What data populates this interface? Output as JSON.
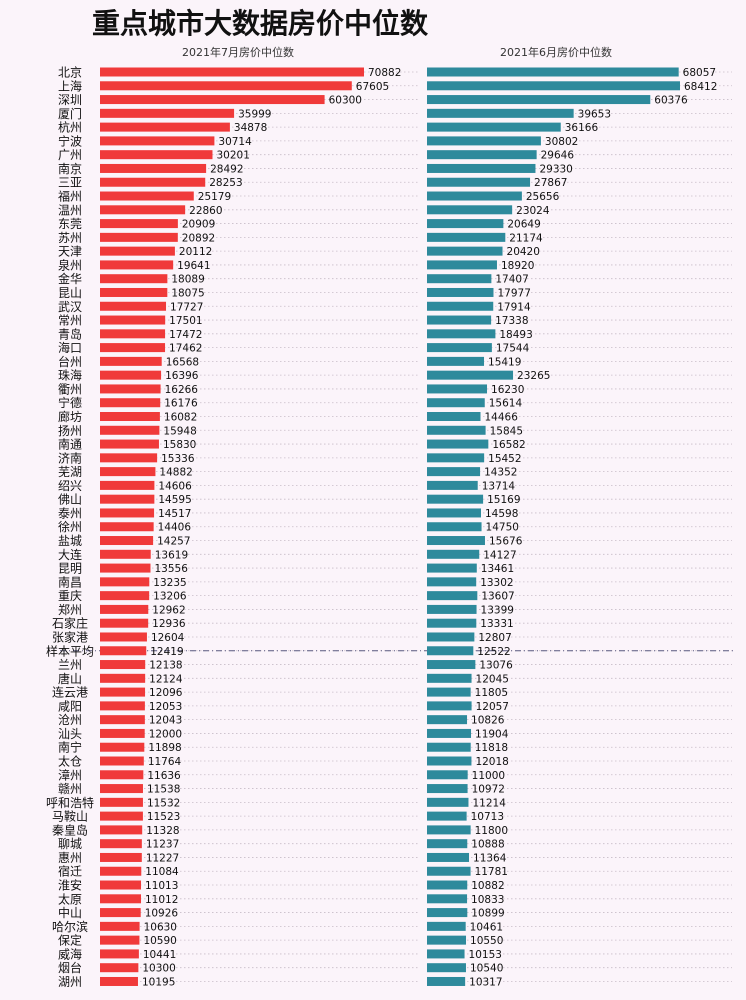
{
  "chart_data": {
    "type": "bar",
    "title": "重点城市大数据房价中位数",
    "series": [
      {
        "name": "2021年7月房价中位数",
        "color": "#f03a3a",
        "values": [
          70882,
          67605,
          60300,
          35999,
          34878,
          30714,
          30201,
          28492,
          28253,
          25179,
          22860,
          20909,
          20892,
          20112,
          19641,
          18089,
          18075,
          17727,
          17501,
          17472,
          17462,
          16568,
          16396,
          16266,
          16176,
          16082,
          15948,
          15830,
          15336,
          14882,
          14606,
          14595,
          14517,
          14406,
          14257,
          13619,
          13556,
          13235,
          13206,
          12962,
          12936,
          12604,
          12419,
          12138,
          12124,
          12096,
          12053,
          12043,
          12000,
          11898,
          11764,
          11636,
          11538,
          11532,
          11523,
          11328,
          11237,
          11227,
          11084,
          11013,
          11012,
          10926,
          10630,
          10590,
          10441,
          10300,
          10195
        ]
      },
      {
        "name": "2021年6月房价中位数",
        "color": "#2e8a9c",
        "values": [
          68057,
          68412,
          60376,
          39653,
          36166,
          30802,
          29646,
          29330,
          27867,
          25656,
          23024,
          20649,
          21174,
          20420,
          18920,
          17407,
          17977,
          17914,
          17338,
          18493,
          17544,
          15419,
          23265,
          16230,
          15614,
          14466,
          15845,
          16582,
          15452,
          14352,
          13714,
          15169,
          14598,
          14750,
          15676,
          14127,
          13461,
          13302,
          13607,
          13399,
          13331,
          12807,
          12522,
          13076,
          12045,
          11805,
          12057,
          10826,
          11904,
          11818,
          12018,
          11000,
          10972,
          11214,
          10713,
          11800,
          10888,
          11364,
          11781,
          10882,
          10833,
          10899,
          10461,
          10550,
          10153,
          10540,
          10317
        ]
      }
    ],
    "categories": [
      "北京",
      "上海",
      "深圳",
      "厦门",
      "杭州",
      "宁波",
      "广州",
      "南京",
      "三亚",
      "福州",
      "温州",
      "东莞",
      "苏州",
      "天津",
      "泉州",
      "金华",
      "昆山",
      "武汉",
      "常州",
      "青岛",
      "海口",
      "台州",
      "珠海",
      "衢州",
      "宁德",
      "廊坊",
      "扬州",
      "南通",
      "济南",
      "芜湖",
      "绍兴",
      "佛山",
      "泰州",
      "徐州",
      "盐城",
      "大连",
      "昆明",
      "南昌",
      "重庆",
      "郑州",
      "石家庄",
      "张家港",
      "样本平均",
      "兰州",
      "唐山",
      "连云港",
      "咸阳",
      "沧州",
      "汕头",
      "南宁",
      "太仓",
      "漳州",
      "赣州",
      "呼和浩特",
      "马鞍山",
      "秦皇岛",
      "聊城",
      "惠州",
      "宿迁",
      "淮安",
      "太原",
      "中山",
      "哈尔滨",
      "保定",
      "威海",
      "烟台",
      "湖州"
    ],
    "reference_category": "样本平均",
    "xlabel": "",
    "ylabel": "",
    "xlim": [
      0,
      80000
    ]
  }
}
